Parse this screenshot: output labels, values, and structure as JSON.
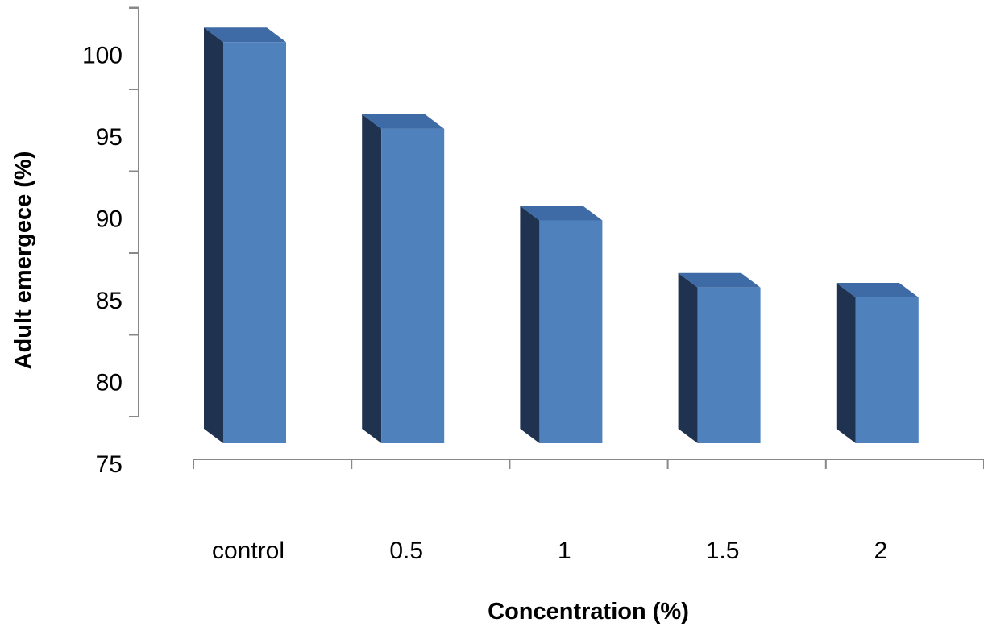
{
  "chart_data": {
    "type": "bar",
    "title": "",
    "xlabel": "Concentration (%)",
    "ylabel": "Adult emergece (%)",
    "categories": [
      "control",
      "0.5",
      "1",
      "1.5",
      "2"
    ],
    "values": [
      100.8,
      95.5,
      89.9,
      85.8,
      85.2
    ],
    "ylim": [
      75,
      102
    ],
    "y_ticks": [
      "75",
      "80",
      "85",
      "90",
      "95",
      "100"
    ],
    "three_d": true,
    "grid": false,
    "legend": "none",
    "colors": {
      "bar_front": "#4f81bd",
      "bar_side": "#1f3350",
      "bar_top": "#3e6aa6",
      "axis": "#888888"
    }
  }
}
